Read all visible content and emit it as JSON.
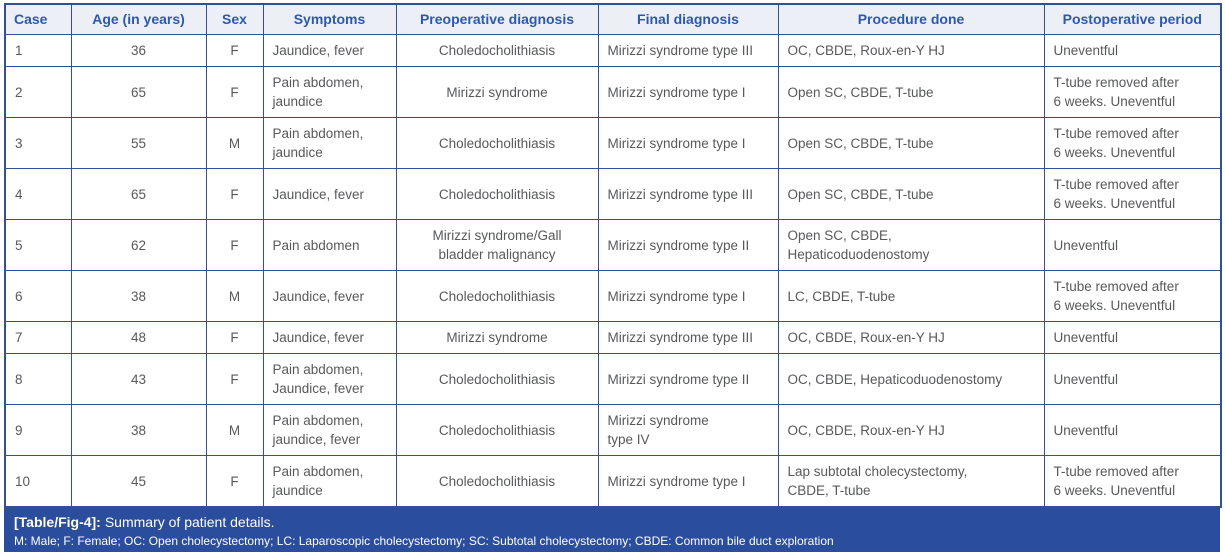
{
  "table": {
    "columns": [
      {
        "key": "case",
        "label": "Case"
      },
      {
        "key": "age",
        "label": "Age (in years)"
      },
      {
        "key": "sex",
        "label": "Sex"
      },
      {
        "key": "symptoms",
        "label": "Symptoms"
      },
      {
        "key": "preoperative_diagnosis",
        "label": "Preoperative diagnosis"
      },
      {
        "key": "final_diagnosis",
        "label": "Final diagnosis"
      },
      {
        "key": "procedure_done",
        "label": "Procedure done"
      },
      {
        "key": "postoperative_period",
        "label": "Postoperative period"
      }
    ],
    "rows": [
      {
        "case": "1",
        "age": "36",
        "sex": "F",
        "symptoms": "Jaundice, fever",
        "preoperative_diagnosis": "Choledocholithiasis",
        "final_diagnosis": "Mirizzi syndrome type III",
        "procedure_done": "OC, CBDE, Roux-en-Y HJ",
        "postoperative_period": "Uneventful"
      },
      {
        "case": "2",
        "age": "65",
        "sex": "F",
        "symptoms": "Pain abdomen,\njaundice",
        "preoperative_diagnosis": "Mirizzi syndrome",
        "final_diagnosis": "Mirizzi syndrome type I",
        "procedure_done": "Open SC, CBDE, T-tube",
        "postoperative_period": "T-tube removed after\n6 weeks. Uneventful"
      },
      {
        "case": "3",
        "age": "55",
        "sex": "M",
        "symptoms": "Pain abdomen,\njaundice",
        "preoperative_diagnosis": "Choledocholithiasis",
        "final_diagnosis": "Mirizzi syndrome type I",
        "procedure_done": "Open SC, CBDE, T-tube",
        "postoperative_period": "T-tube removed after\n6 weeks. Uneventful"
      },
      {
        "case": "4",
        "age": "65",
        "sex": "F",
        "symptoms": "Jaundice, fever",
        "preoperative_diagnosis": "Choledocholithiasis",
        "final_diagnosis": "Mirizzi syndrome type III",
        "procedure_done": "Open SC, CBDE, T-tube",
        "postoperative_period": "T-tube removed after\n6 weeks. Uneventful"
      },
      {
        "case": "5",
        "age": "62",
        "sex": "F",
        "symptoms": "Pain abdomen",
        "preoperative_diagnosis": "Mirizzi syndrome/Gall\nbladder malignancy",
        "final_diagnosis": "Mirizzi syndrome type II",
        "procedure_done": "Open SC, CBDE,\nHepaticoduodenostomy",
        "postoperative_period": "Uneventful"
      },
      {
        "case": "6",
        "age": "38",
        "sex": "M",
        "symptoms": "Jaundice, fever",
        "preoperative_diagnosis": "Choledocholithiasis",
        "final_diagnosis": "Mirizzi syndrome type I",
        "procedure_done": "LC, CBDE, T-tube",
        "postoperative_period": "T-tube removed after\n6 weeks. Uneventful"
      },
      {
        "case": "7",
        "age": "48",
        "sex": "F",
        "symptoms": "Jaundice, fever",
        "preoperative_diagnosis": "Mirizzi syndrome",
        "final_diagnosis": "Mirizzi syndrome type III",
        "procedure_done": "OC, CBDE, Roux-en-Y HJ",
        "postoperative_period": "Uneventful"
      },
      {
        "case": "8",
        "age": "43",
        "sex": "F",
        "symptoms": "Pain abdomen,\nJaundice, fever",
        "preoperative_diagnosis": "Choledocholithiasis",
        "final_diagnosis": "Mirizzi syndrome type II",
        "procedure_done": "OC, CBDE, Hepaticoduodenostomy",
        "postoperative_period": "Uneventful"
      },
      {
        "case": "9",
        "age": "38",
        "sex": "M",
        "symptoms": "Pain abdomen,\njaundice, fever",
        "preoperative_diagnosis": "Choledocholithiasis",
        "final_diagnosis": "Mirizzi syndrome\ntype IV",
        "procedure_done": "OC, CBDE, Roux-en-Y HJ",
        "postoperative_period": "Uneventful"
      },
      {
        "case": "10",
        "age": "45",
        "sex": "F",
        "symptoms": "Pain abdomen,\njaundice",
        "preoperative_diagnosis": "Choledocholithiasis",
        "final_diagnosis": "Mirizzi syndrome type I",
        "procedure_done": "Lap subtotal cholecystectomy,\nCBDE, T-tube",
        "postoperative_period": "T-tube removed after\n6 weeks. Uneventful"
      }
    ]
  },
  "caption": {
    "label": "[Table/Fig-4]:",
    "title": "Summary of patient details.",
    "abbreviations": "M: Male; F: Female; OC: Open cholecystectomy; LC: Laparoscopic cholecystectomy; SC: Subtotal cholecystectomy; CBDE: Common bile duct exploration"
  },
  "colors": {
    "border_blue": "#31518f",
    "header_background": "#edeff6",
    "header_text": "#2d5aa8",
    "body_text": "#58595b",
    "caption_background": "#2a4d9d",
    "caption_text": "#ffffff"
  }
}
